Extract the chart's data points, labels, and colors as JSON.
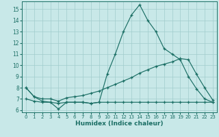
{
  "xlabel": "Humidex (Indice chaleur)",
  "bg_color": "#c8e8e8",
  "grid_color": "#a0cccc",
  "line_color": "#1a6e64",
  "spine_color": "#1a6e64",
  "xlim": [
    -0.5,
    23.5
  ],
  "ylim": [
    5.8,
    15.7
  ],
  "xticks": [
    0,
    1,
    2,
    3,
    4,
    5,
    6,
    7,
    8,
    9,
    10,
    11,
    12,
    13,
    14,
    15,
    16,
    17,
    18,
    19,
    20,
    21,
    22,
    23
  ],
  "yticks": [
    6,
    7,
    8,
    9,
    10,
    11,
    12,
    13,
    14,
    15
  ],
  "line1_x": [
    0,
    1,
    2,
    3,
    4,
    5,
    6,
    7,
    8,
    9,
    10,
    11,
    12,
    13,
    14,
    15,
    16,
    17,
    18,
    19,
    20,
    21,
    22,
    23
  ],
  "line1_y": [
    8.0,
    7.2,
    6.8,
    6.7,
    6.1,
    6.7,
    6.7,
    6.7,
    6.6,
    6.7,
    9.2,
    11.0,
    13.0,
    14.5,
    15.4,
    14.0,
    13.0,
    11.5,
    11.0,
    10.5,
    9.0,
    7.9,
    7.0,
    6.7
  ],
  "line2_x": [
    0,
    1,
    2,
    3,
    4,
    5,
    6,
    7,
    8,
    9,
    10,
    11,
    12,
    13,
    14,
    15,
    16,
    17,
    18,
    19,
    20,
    21,
    22,
    23
  ],
  "line2_y": [
    8.0,
    7.2,
    7.0,
    7.0,
    6.8,
    7.1,
    7.2,
    7.3,
    7.5,
    7.7,
    8.0,
    8.3,
    8.6,
    8.9,
    9.3,
    9.6,
    9.9,
    10.1,
    10.3,
    10.6,
    10.5,
    9.2,
    8.0,
    6.9
  ],
  "line3_x": [
    0,
    1,
    2,
    3,
    4,
    5,
    6,
    7,
    8,
    9,
    10,
    11,
    12,
    13,
    14,
    15,
    16,
    17,
    18,
    19,
    20,
    21,
    22,
    23
  ],
  "line3_y": [
    7.0,
    6.8,
    6.7,
    6.7,
    6.6,
    6.7,
    6.7,
    6.7,
    6.6,
    6.7,
    6.7,
    6.7,
    6.7,
    6.7,
    6.7,
    6.7,
    6.7,
    6.7,
    6.7,
    6.7,
    6.7,
    6.7,
    6.7,
    6.7
  ]
}
